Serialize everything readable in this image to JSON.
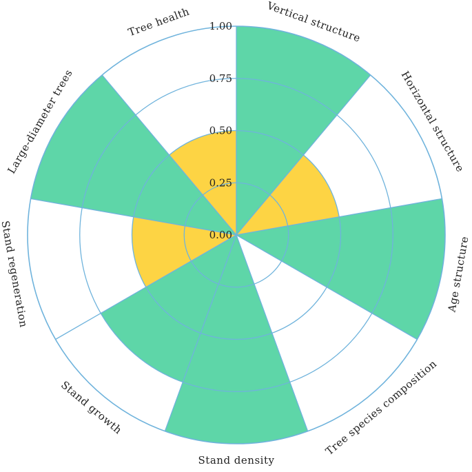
{
  "chart_data": {
    "type": "polar-bar",
    "rlim": [
      0,
      1
    ],
    "r_ticks": [
      "0.00",
      "0.25",
      "0.50",
      "0.75",
      "1.00"
    ],
    "grid": true,
    "direction": "clockwise",
    "start_angle_deg": 0,
    "categories": [
      "Vertical structure",
      "Horizontal structure",
      "Age structure",
      "Tree species composition",
      "Stand density",
      "Stand growth",
      "Stand regeneration",
      "Large-diameter trees",
      "Tree health"
    ],
    "values": [
      1.0,
      0.5,
      1.0,
      0.75,
      1.0,
      0.75,
      0.5,
      1.0,
      0.5
    ],
    "bar_colors": [
      "#5ed6a8",
      "#fdd444",
      "#5ed6a8",
      "#ffffff",
      "#5ed6a8",
      "#5ed6a8",
      "#fdd444",
      "#5ed6a8",
      "#fdd444"
    ],
    "colors": {
      "high": "#5ed6a8",
      "medium": "#fdd444",
      "grid": "#6fb3dc",
      "text": "#222222"
    }
  }
}
